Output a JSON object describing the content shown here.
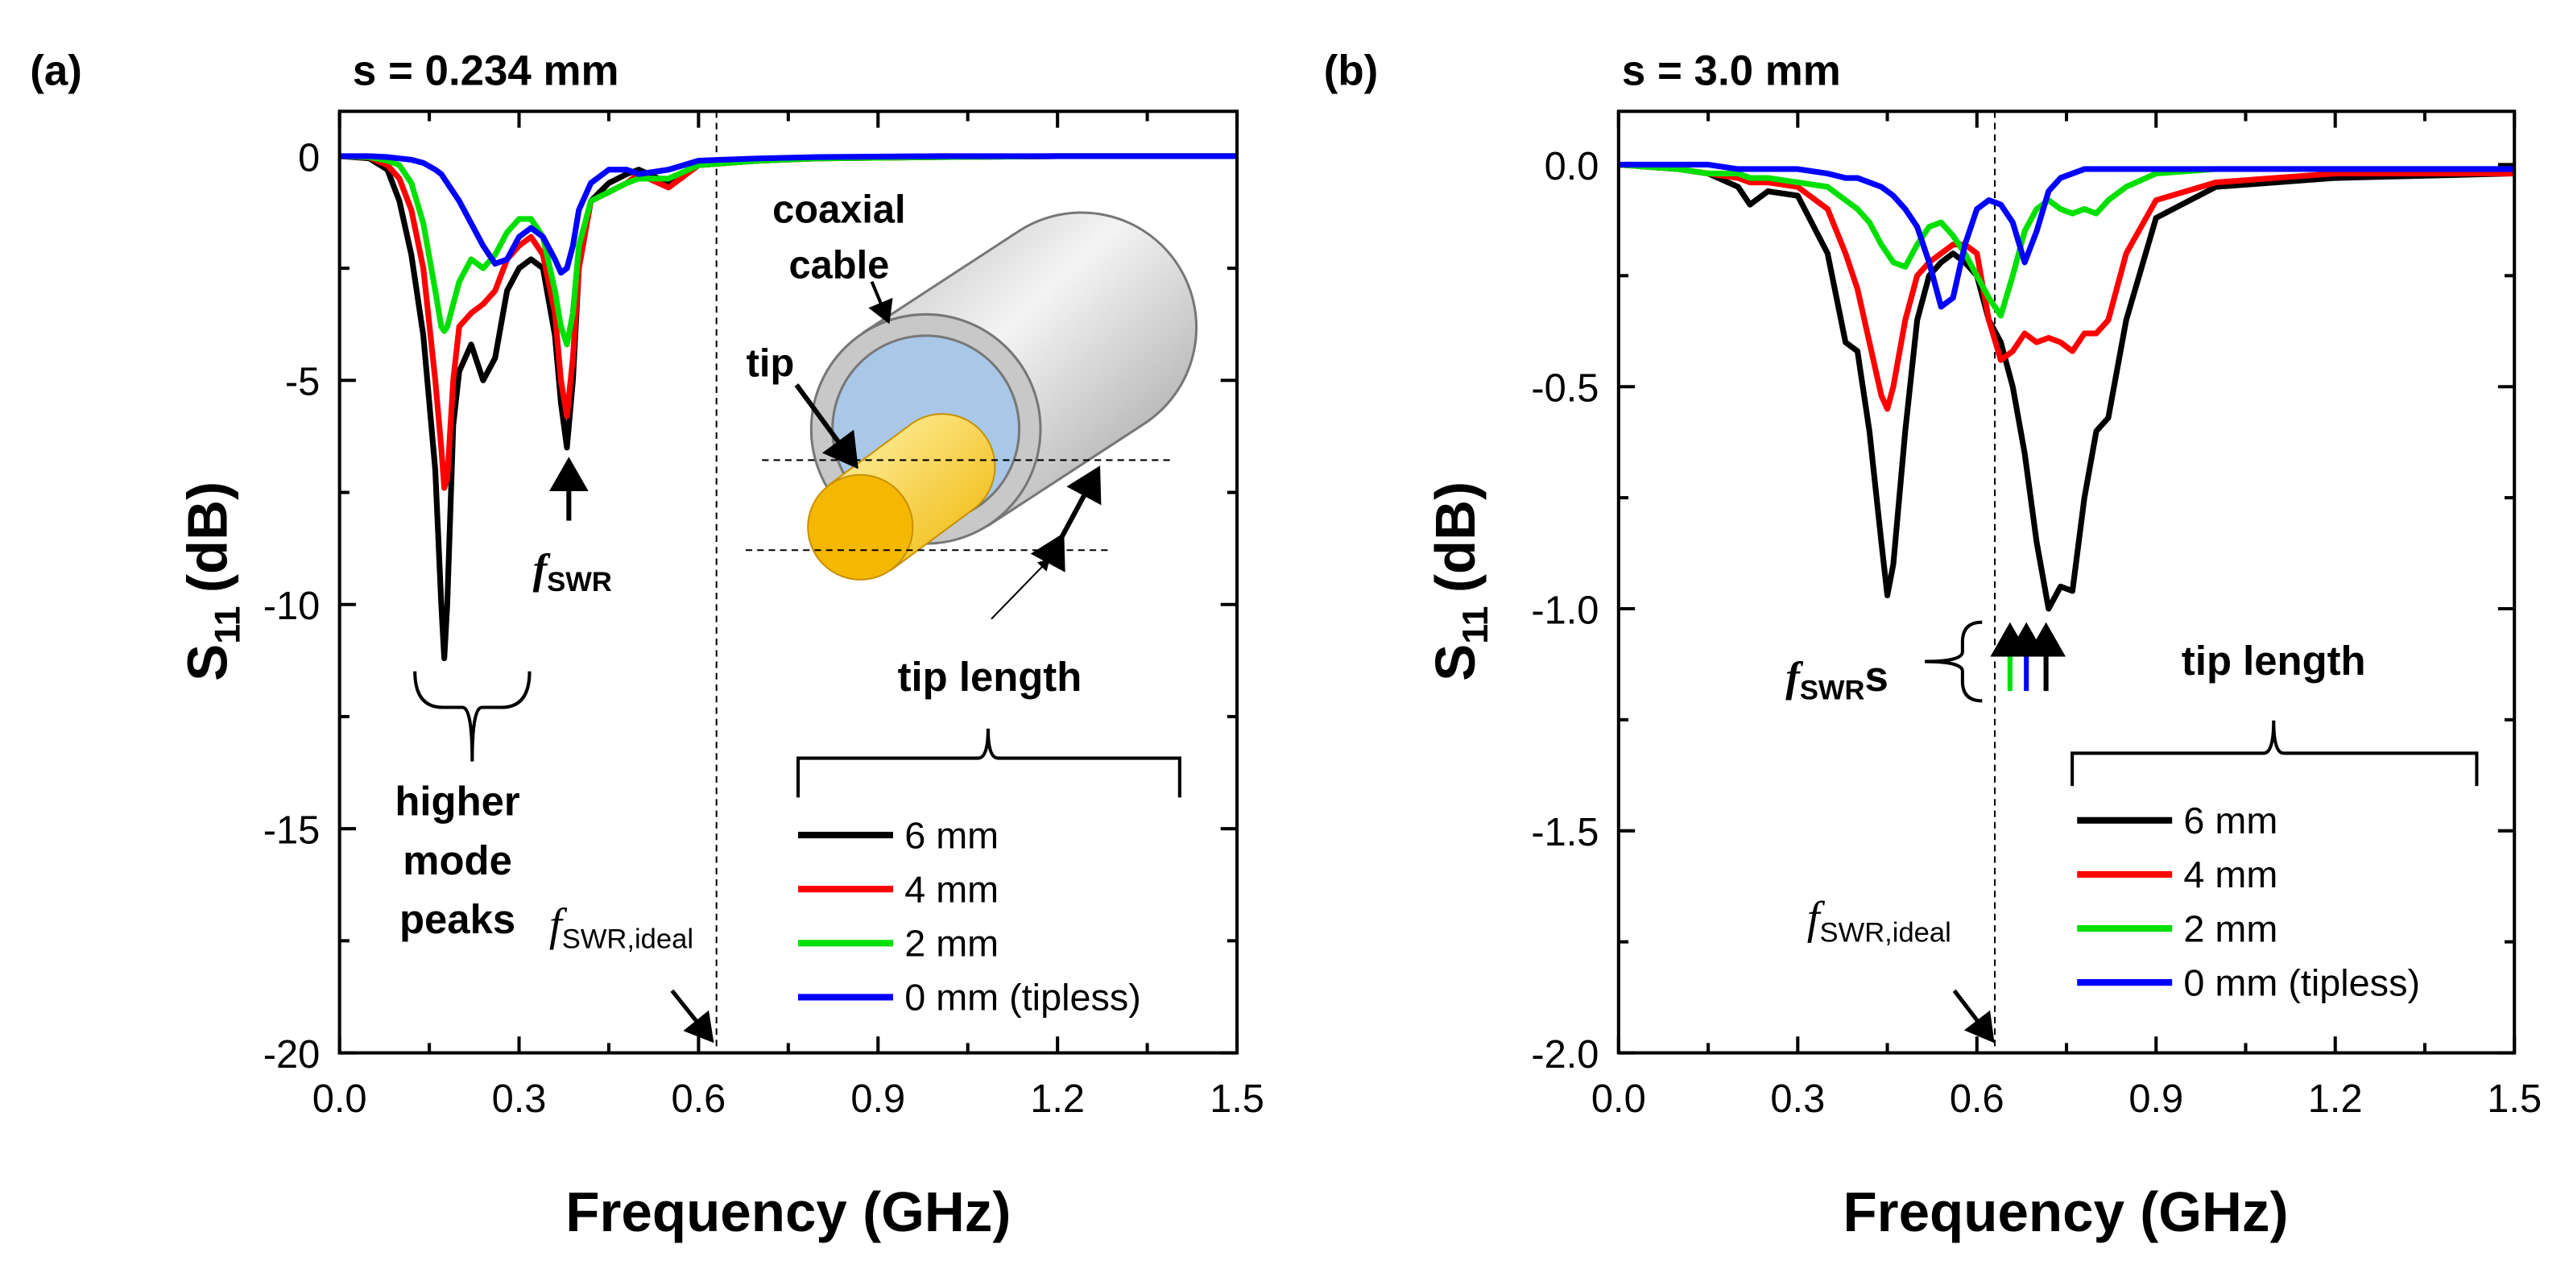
{
  "chart_data": [
    {
      "type": "line",
      "panel_label": "(a)",
      "title": "s = 0.234 mm",
      "xlabel": "Frequency (GHz)",
      "ylabel": {
        "text": "S",
        "sub": "11",
        "unit": "(dB)"
      },
      "x": [
        0,
        0.05,
        0.08,
        0.1,
        0.12,
        0.14,
        0.16,
        0.17,
        0.175,
        0.18,
        0.19,
        0.2,
        0.22,
        0.24,
        0.26,
        0.28,
        0.3,
        0.32,
        0.34,
        0.36,
        0.37,
        0.38,
        0.39,
        0.4,
        0.42,
        0.45,
        0.48,
        0.5,
        0.55,
        0.6,
        0.7,
        0.8,
        1.0,
        1.2,
        1.5
      ],
      "series": [
        {
          "name": "6 mm",
          "color": "#000000",
          "values": [
            0,
            -0.05,
            -0.3,
            -1,
            -2.2,
            -4,
            -7,
            -10,
            -11.2,
            -10,
            -6,
            -4.8,
            -4.2,
            -5,
            -4.5,
            -3,
            -2.5,
            -2.3,
            -2.5,
            -4,
            -5.5,
            -6.5,
            -5,
            -2.5,
            -1,
            -0.6,
            -0.4,
            -0.3,
            -0.6,
            -0.2,
            -0.1,
            -0.05,
            -0.02,
            0,
            0
          ]
        },
        {
          "name": "4 mm",
          "color": "#ff0000",
          "values": [
            0,
            -0.03,
            -0.2,
            -0.5,
            -1.2,
            -2.5,
            -5,
            -6.5,
            -7.4,
            -7.2,
            -5,
            -3.8,
            -3.5,
            -3.3,
            -3,
            -2.3,
            -2,
            -1.8,
            -2.2,
            -3.5,
            -5,
            -5.8,
            -4.5,
            -2.5,
            -1,
            -0.8,
            -0.6,
            -0.4,
            -0.7,
            -0.2,
            -0.1,
            -0.05,
            -0.02,
            0,
            0
          ]
        },
        {
          "name": "2 mm",
          "color": "#00e000",
          "values": [
            0,
            -0.02,
            -0.1,
            -0.2,
            -0.6,
            -1.5,
            -3,
            -3.8,
            -3.9,
            -3.8,
            -3.3,
            -2.8,
            -2.3,
            -2.5,
            -2.2,
            -1.7,
            -1.4,
            -1.4,
            -1.8,
            -3,
            -3.8,
            -4.2,
            -3.5,
            -2,
            -1,
            -0.8,
            -0.6,
            -0.5,
            -0.5,
            -0.2,
            -0.1,
            -0.05,
            -0.02,
            0,
            0
          ]
        },
        {
          "name": "0 mm (tipless)",
          "color": "#0000ff",
          "values": [
            0,
            0,
            -0.02,
            -0.05,
            -0.08,
            -0.15,
            -0.3,
            -0.4,
            -0.5,
            -0.6,
            -0.8,
            -1,
            -1.5,
            -2,
            -2.4,
            -2.3,
            -1.8,
            -1.6,
            -1.8,
            -2.3,
            -2.6,
            -2.5,
            -2,
            -1.2,
            -0.6,
            -0.3,
            -0.3,
            -0.4,
            -0.3,
            -0.1,
            -0.05,
            -0.02,
            0,
            0,
            0
          ]
        }
      ],
      "xlim": [
        0,
        1.5
      ],
      "ylim": [
        -20,
        1
      ],
      "xticks": [
        {
          "value": 0,
          "label": "0.0"
        },
        0.3,
        0.6,
        0.9,
        1.2,
        1.5
      ],
      "yticks": [
        0,
        -5,
        -10,
        -15,
        -20
      ],
      "reference_line": 0.63,
      "legend_title": "tip length",
      "annotations": {
        "cable_label": [
          "coaxial",
          "cable"
        ],
        "tip_label": "tip",
        "peak_label": {
          "f": "f",
          "sub": "SWR"
        },
        "higher_modes": [
          "higher",
          "mode",
          "peaks"
        ],
        "ideal_label": {
          "f": "f",
          "sub": "SWR,ideal"
        }
      }
    },
    {
      "type": "line",
      "panel_label": "(b)",
      "title": "s = 3.0 mm",
      "xlabel": "Frequency (GHz)",
      "ylabel": {
        "text": "S",
        "sub": "11",
        "unit": "(dB)"
      },
      "x": [
        0,
        0.1,
        0.15,
        0.2,
        0.22,
        0.25,
        0.3,
        0.35,
        0.38,
        0.4,
        0.42,
        0.44,
        0.45,
        0.46,
        0.48,
        0.5,
        0.52,
        0.54,
        0.56,
        0.58,
        0.6,
        0.62,
        0.64,
        0.66,
        0.68,
        0.7,
        0.72,
        0.74,
        0.76,
        0.78,
        0.8,
        0.82,
        0.85,
        0.9,
        1.0,
        1.2,
        1.5
      ],
      "series": [
        {
          "name": "6 mm",
          "color": "#000000",
          "values": [
            0,
            -0.01,
            -0.02,
            -0.05,
            -0.09,
            -0.06,
            -0.07,
            -0.2,
            -0.4,
            -0.42,
            -0.6,
            -0.85,
            -0.97,
            -0.9,
            -0.6,
            -0.35,
            -0.25,
            -0.22,
            -0.2,
            -0.22,
            -0.25,
            -0.35,
            -0.4,
            -0.5,
            -0.65,
            -0.85,
            -1.0,
            -0.95,
            -0.96,
            -0.75,
            -0.6,
            -0.57,
            -0.35,
            -0.12,
            -0.05,
            -0.03,
            -0.02
          ]
        },
        {
          "name": "4 mm",
          "color": "#ff0000",
          "values": [
            0,
            -0.01,
            -0.02,
            -0.03,
            -0.04,
            -0.04,
            -0.05,
            -0.1,
            -0.2,
            -0.28,
            -0.4,
            -0.52,
            -0.55,
            -0.5,
            -0.35,
            -0.25,
            -0.22,
            -0.2,
            -0.18,
            -0.18,
            -0.2,
            -0.35,
            -0.44,
            -0.42,
            -0.38,
            -0.4,
            -0.39,
            -0.4,
            -0.42,
            -0.38,
            -0.38,
            -0.35,
            -0.2,
            -0.08,
            -0.04,
            -0.02,
            -0.02
          ]
        },
        {
          "name": "2 mm",
          "color": "#00e000",
          "values": [
            0,
            -0.01,
            -0.02,
            -0.02,
            -0.03,
            -0.03,
            -0.04,
            -0.05,
            -0.08,
            -0.1,
            -0.13,
            -0.18,
            -0.2,
            -0.22,
            -0.23,
            -0.18,
            -0.14,
            -0.13,
            -0.16,
            -0.2,
            -0.25,
            -0.3,
            -0.34,
            -0.25,
            -0.15,
            -0.1,
            -0.08,
            -0.1,
            -0.11,
            -0.1,
            -0.11,
            -0.08,
            -0.05,
            -0.02,
            -0.01,
            -0.01,
            -0.01
          ]
        },
        {
          "name": "0 mm (tipless)",
          "color": "#0000ff",
          "values": [
            0,
            0,
            0,
            -0.01,
            -0.01,
            -0.01,
            -0.01,
            -0.02,
            -0.03,
            -0.03,
            -0.04,
            -0.05,
            -0.06,
            -0.07,
            -0.1,
            -0.14,
            -0.22,
            -0.32,
            -0.3,
            -0.18,
            -0.1,
            -0.08,
            -0.09,
            -0.13,
            -0.22,
            -0.15,
            -0.06,
            -0.03,
            -0.02,
            -0.01,
            -0.01,
            -0.01,
            -0.01,
            -0.01,
            -0.01,
            -0.01,
            -0.01
          ]
        }
      ],
      "xlim": [
        0,
        1.5
      ],
      "ylim": [
        -2,
        0.12
      ],
      "xticks": [
        {
          "value": 0,
          "label": "0.0"
        },
        0.3,
        0.6,
        0.9,
        1.2,
        1.5
      ],
      "yticks": [
        {
          "value": 0,
          "label": "0.0"
        },
        -0.5,
        {
          "value": -1,
          "label": "-1.0"
        },
        -1.5,
        {
          "value": -2,
          "label": "-2.0"
        }
      ],
      "reference_line": 0.63,
      "legend_title": "tip length",
      "annotations": {
        "peak_label": {
          "f": "f",
          "sub": "SWR",
          "suffix": "s"
        },
        "ideal_label": {
          "f": "f",
          "sub": "SWR,ideal"
        }
      }
    }
  ]
}
